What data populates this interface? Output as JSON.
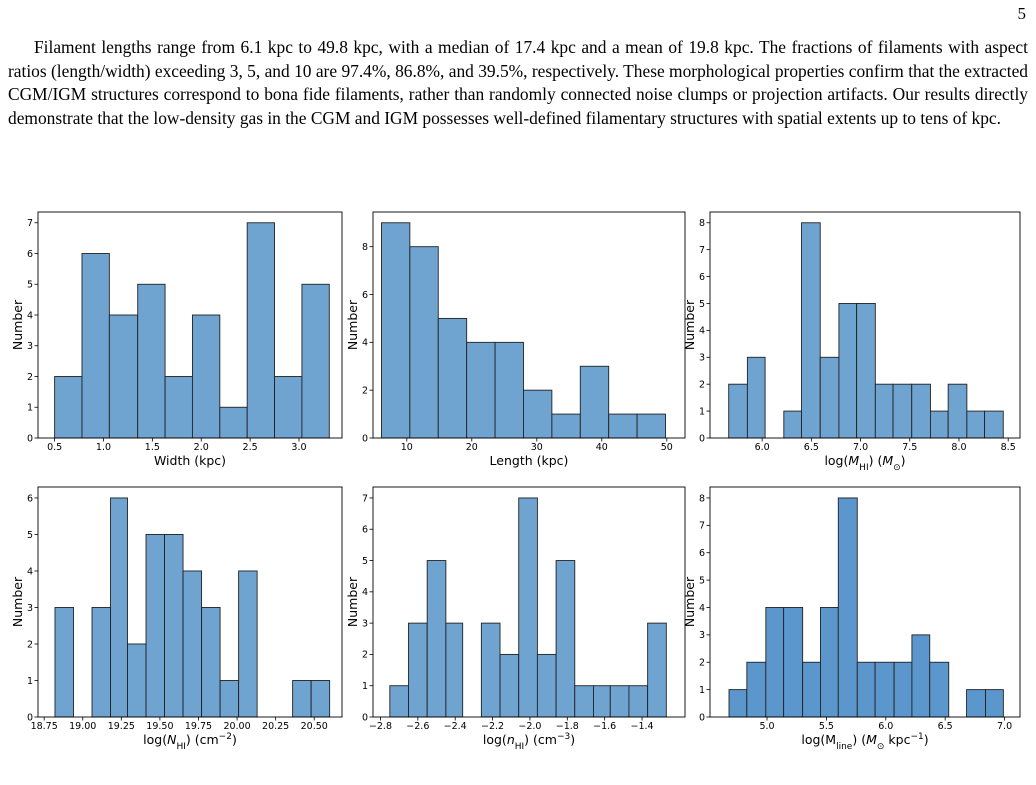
{
  "page_number": "5",
  "paragraph": "Filament lengths range from 6.1 kpc to 49.8 kpc, with a median of 17.4 kpc and a mean of 19.8 kpc. The fractions of filaments with aspect ratios (length/width) exceeding 3, 5, and 10 are 97.4%, 86.8%, and 39.5%, respectively. These morphological properties confirm that the extracted CGM/IGM structures correspond to bona fide filaments, rather than randomly connected noise clumps or projection artifacts. Our results directly demonstrate that the low-density gas in the CGM and IGM possesses well-defined filamentary structures with spatial extents up to tens of kpc.",
  "chart_data": [
    {
      "type": "histogram",
      "color": "#6fa3d0",
      "ylabel": "Number",
      "xlabel": [
        {
          "text": "Width (kpc)",
          "style": "normal"
        }
      ],
      "bins": [
        0.5,
        0.78,
        1.06,
        1.35,
        1.63,
        1.91,
        2.19,
        2.47,
        2.75,
        3.03,
        3.31
      ],
      "values": [
        2,
        6,
        4,
        5,
        2,
        4,
        1,
        7,
        2,
        5
      ],
      "xlim": [
        0.33,
        3.44
      ],
      "ylim": [
        0,
        7.35
      ],
      "xticks": [
        0.5,
        {
          "value": 1,
          "label": "1.0"
        },
        1.5,
        {
          "value": 2,
          "label": "2.0"
        },
        2.5,
        {
          "value": 3,
          "label": "3.0"
        }
      ],
      "yticks": [
        0,
        1,
        2,
        3,
        4,
        5,
        6,
        7
      ]
    },
    {
      "type": "histogram",
      "color": "#6fa3d0",
      "ylabel": "Number",
      "xlabel": [
        {
          "text": "Length (kpc)",
          "style": "normal"
        }
      ],
      "bins": [
        6.1,
        10.47,
        14.84,
        19.21,
        23.58,
        27.95,
        32.32,
        36.69,
        41.06,
        45.43,
        49.8
      ],
      "values": [
        9,
        8,
        5,
        4,
        4,
        2,
        1,
        3,
        1,
        1
      ],
      "xlim": [
        4.8,
        52.8
      ],
      "ylim": [
        0,
        9.45
      ],
      "xticks": [
        10,
        20,
        30,
        40,
        50
      ],
      "yticks": [
        0,
        2,
        4,
        6,
        8
      ]
    },
    {
      "type": "histogram",
      "color": "#6fa3d0",
      "ylabel": "Number",
      "xlabel": [
        {
          "text": "log(",
          "style": "normal"
        },
        {
          "text": "M",
          "style": "italic"
        },
        {
          "text": "HI",
          "style": "sub"
        },
        {
          "text": ") (",
          "style": "normal"
        },
        {
          "text": "M",
          "style": "italic"
        },
        {
          "text": "⊙",
          "style": "sub"
        },
        {
          "text": ")",
          "style": "normal"
        }
      ],
      "bins": [
        5.66,
        5.85,
        6.03,
        6.22,
        6.4,
        6.59,
        6.78,
        6.96,
        7.15,
        7.33,
        7.52,
        7.71,
        7.89,
        8.08,
        8.26,
        8.45
      ],
      "values": [
        2,
        3,
        0,
        1,
        8,
        3,
        5,
        5,
        2,
        2,
        2,
        1,
        2,
        1,
        1
      ],
      "xlim": [
        5.47,
        8.62
      ],
      "ylim": [
        0,
        8.4
      ],
      "xticks": [
        {
          "value": 6,
          "label": "6.0"
        },
        6.5,
        {
          "value": 7,
          "label": "7.0"
        },
        7.5,
        {
          "value": 8,
          "label": "8.0"
        },
        8.5
      ],
      "yticks": [
        0,
        1,
        2,
        3,
        4,
        5,
        6,
        7,
        8
      ]
    },
    {
      "type": "histogram",
      "color": "#6fa3d0",
      "ylabel": "Number",
      "xlabel": [
        {
          "text": "log(",
          "style": "normal"
        },
        {
          "text": "N",
          "style": "italic"
        },
        {
          "text": "HI",
          "style": "sub"
        },
        {
          "text": ") (cm",
          "style": "normal"
        },
        {
          "text": "−2",
          "style": "sup"
        },
        {
          "text": ")",
          "style": "normal"
        }
      ],
      "bins": [
        18.82,
        18.94,
        19.06,
        19.18,
        19.29,
        19.41,
        19.53,
        19.65,
        19.77,
        19.89,
        20.01,
        20.13,
        20.24,
        20.36,
        20.48,
        20.6
      ],
      "values": [
        3,
        0,
        3,
        6,
        2,
        5,
        5,
        4,
        3,
        1,
        4,
        0,
        0,
        1,
        1
      ],
      "xlim": [
        18.71,
        20.68
      ],
      "ylim": [
        0,
        6.3
      ],
      "xticks": [
        18.75,
        {
          "value": 19,
          "label": "19.00"
        },
        19.25,
        {
          "value": 19.5,
          "label": "19.50"
        },
        19.75,
        {
          "value": 20,
          "label": "20.00"
        },
        20.25,
        {
          "value": 20.5,
          "label": "20.50"
        }
      ],
      "yticks": [
        0,
        1,
        2,
        3,
        4,
        5,
        6
      ]
    },
    {
      "type": "histogram",
      "color": "#6fa3d0",
      "ylabel": "Number",
      "xlabel": [
        {
          "text": "log(",
          "style": "normal"
        },
        {
          "text": "n",
          "style": "italic"
        },
        {
          "text": "HI",
          "style": "sub"
        },
        {
          "text": ") (cm",
          "style": "normal"
        },
        {
          "text": "−3",
          "style": "sup"
        },
        {
          "text": ")",
          "style": "normal"
        }
      ],
      "bins": [
        -2.75,
        -2.65,
        -2.55,
        -2.45,
        -2.36,
        -2.26,
        -2.16,
        -2.06,
        -1.96,
        -1.86,
        -1.76,
        -1.66,
        -1.57,
        -1.47,
        -1.37,
        -1.27
      ],
      "values": [
        1,
        3,
        5,
        3,
        0,
        3,
        2,
        7,
        2,
        5,
        1,
        1,
        1,
        1,
        3
      ],
      "xlim": [
        -2.84,
        -1.17
      ],
      "ylim": [
        0,
        7.35
      ],
      "xticks": [
        {
          "value": -2.8,
          "label": "−2.8"
        },
        {
          "value": -2.6,
          "label": "−2.6"
        },
        {
          "value": -2.4,
          "label": "−2.4"
        },
        {
          "value": -2.2,
          "label": "−2.2"
        },
        {
          "value": -2,
          "label": "−2.0"
        },
        {
          "value": -1.8,
          "label": "−1.8"
        },
        {
          "value": -1.6,
          "label": "−1.6"
        },
        {
          "value": -1.4,
          "label": "−1.4"
        }
      ],
      "yticks": [
        0,
        1,
        2,
        3,
        4,
        5,
        6,
        7
      ]
    },
    {
      "type": "histogram",
      "color": "#5b96cc",
      "ylabel": "Number",
      "xlabel": [
        {
          "text": "log(M",
          "style": "normal"
        },
        {
          "text": "line",
          "style": "sub"
        },
        {
          "text": ") (",
          "style": "normal"
        },
        {
          "text": "M",
          "style": "italic"
        },
        {
          "text": "⊙",
          "style": "sub"
        },
        {
          "text": " kpc",
          "style": "normal"
        },
        {
          "text": "−1",
          "style": "sup"
        },
        {
          "text": ")",
          "style": "normal"
        }
      ],
      "bins": [
        4.68,
        4.83,
        4.99,
        5.14,
        5.3,
        5.45,
        5.6,
        5.76,
        5.91,
        6.07,
        6.22,
        6.37,
        6.53,
        6.68,
        6.84,
        6.99
      ],
      "values": [
        1,
        2,
        4,
        4,
        2,
        4,
        8,
        2,
        2,
        2,
        3,
        2,
        0,
        1,
        1
      ],
      "xlim": [
        4.52,
        7.13
      ],
      "ylim": [
        0,
        8.4
      ],
      "xticks": [
        {
          "value": 5,
          "label": "5.0"
        },
        5.5,
        {
          "value": 6,
          "label": "6.0"
        },
        6.5,
        {
          "value": 7,
          "label": "7.0"
        }
      ],
      "yticks": [
        0,
        1,
        2,
        3,
        4,
        5,
        6,
        7,
        8
      ]
    }
  ]
}
